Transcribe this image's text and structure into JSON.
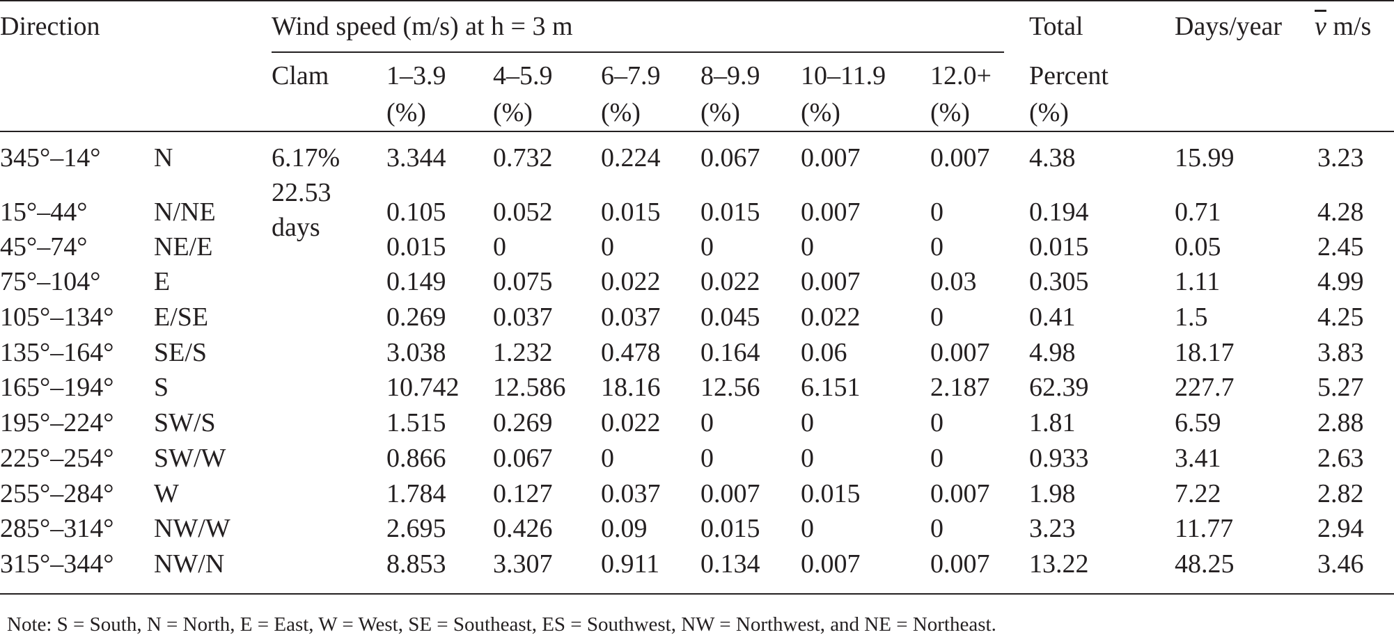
{
  "table": {
    "header": {
      "direction": "Direction",
      "wind_speed_group": "Wind speed (m/s) at h = 3 m",
      "total_line1": "Total",
      "total_line2": "Percent",
      "total_line3": "(%)",
      "days_year": "Days/year",
      "mean_speed_symbol": "v",
      "mean_speed_unit": " m/s",
      "sub_columns": [
        {
          "line1": "Clam",
          "line2": ""
        },
        {
          "line1": "1–3.9",
          "line2": "(%)"
        },
        {
          "line1": "4–5.9",
          "line2": "(%)"
        },
        {
          "line1": "6–7.9",
          "line2": "(%)"
        },
        {
          "line1": "8–9.9",
          "line2": "(%)"
        },
        {
          "line1": "10–11.9",
          "line2": "(%)"
        },
        {
          "line1": "12.0+",
          "line2": "(%)"
        }
      ]
    },
    "calm": {
      "percent": "6.17%",
      "days_value": "22.53",
      "days_unit": "days"
    },
    "rows": [
      {
        "range": "345°–14°",
        "dir": "N",
        "s1": "3.344",
        "s2": "0.732",
        "s3": "0.224",
        "s4": "0.067",
        "s5": "0.007",
        "s6": "0.007",
        "total": "4.38",
        "days": "15.99",
        "vmean": "3.23"
      },
      {
        "range": "15°–44°",
        "dir": "N/NE",
        "s1": "0.105",
        "s2": "0.052",
        "s3": "0.015",
        "s4": "0.015",
        "s5": "0.007",
        "s6": "0",
        "total": "0.194",
        "days": "0.71",
        "vmean": "4.28"
      },
      {
        "range": "45°–74°",
        "dir": "NE/E",
        "s1": "0.015",
        "s2": "0",
        "s3": "0",
        "s4": "0",
        "s5": "0",
        "s6": "0",
        "total": "0.015",
        "days": "0.05",
        "vmean": "2.45"
      },
      {
        "range": "75°–104°",
        "dir": "E",
        "s1": "0.149",
        "s2": "0.075",
        "s3": "0.022",
        "s4": "0.022",
        "s5": "0.007",
        "s6": "0.03",
        "total": "0.305",
        "days": "1.11",
        "vmean": "4.99"
      },
      {
        "range": "105°–134°",
        "dir": "E/SE",
        "s1": "0.269",
        "s2": "0.037",
        "s3": "0.037",
        "s4": "0.045",
        "s5": "0.022",
        "s6": "0",
        "total": "0.41",
        "days": "1.5",
        "vmean": "4.25"
      },
      {
        "range": "135°–164°",
        "dir": "SE/S",
        "s1": "3.038",
        "s2": "1.232",
        "s3": "0.478",
        "s4": "0.164",
        "s5": "0.06",
        "s6": "0.007",
        "total": "4.98",
        "days": "18.17",
        "vmean": "3.83"
      },
      {
        "range": "165°–194°",
        "dir": "S",
        "s1": "10.742",
        "s2": "12.586",
        "s3": "18.16",
        "s4": "12.56",
        "s5": "6.151",
        "s6": "2.187",
        "total": "62.39",
        "days": "227.7",
        "vmean": "5.27"
      },
      {
        "range": "195°–224°",
        "dir": "SW/S",
        "s1": "1.515",
        "s2": "0.269",
        "s3": "0.022",
        "s4": "0",
        "s5": "0",
        "s6": "0",
        "total": "1.81",
        "days": "6.59",
        "vmean": "2.88"
      },
      {
        "range": "225°–254°",
        "dir": "SW/W",
        "s1": "0.866",
        "s2": "0.067",
        "s3": "0",
        "s4": "0",
        "s5": "0",
        "s6": "0",
        "total": "0.933",
        "days": "3.41",
        "vmean": "2.63"
      },
      {
        "range": "255°–284°",
        "dir": "W",
        "s1": "1.784",
        "s2": "0.127",
        "s3": "0.037",
        "s4": "0.007",
        "s5": "0.015",
        "s6": "0.007",
        "total": "1.98",
        "days": "7.22",
        "vmean": "2.82"
      },
      {
        "range": "285°–314°",
        "dir": "NW/W",
        "s1": "2.695",
        "s2": "0.426",
        "s3": "0.09",
        "s4": "0.015",
        "s5": "0",
        "s6": "0",
        "total": "3.23",
        "days": "11.77",
        "vmean": "2.94"
      },
      {
        "range": "315°–344°",
        "dir": "NW/N",
        "s1": "8.853",
        "s2": "3.307",
        "s3": "0.911",
        "s4": "0.134",
        "s5": "0.007",
        "s6": "0.007",
        "total": "13.22",
        "days": "48.25",
        "vmean": "3.46"
      }
    ]
  },
  "note": "Note: S = South, N = North, E = East, W = West, SE = Southeast, ES = Southwest, NW = Northwest, and NE = Northeast."
}
